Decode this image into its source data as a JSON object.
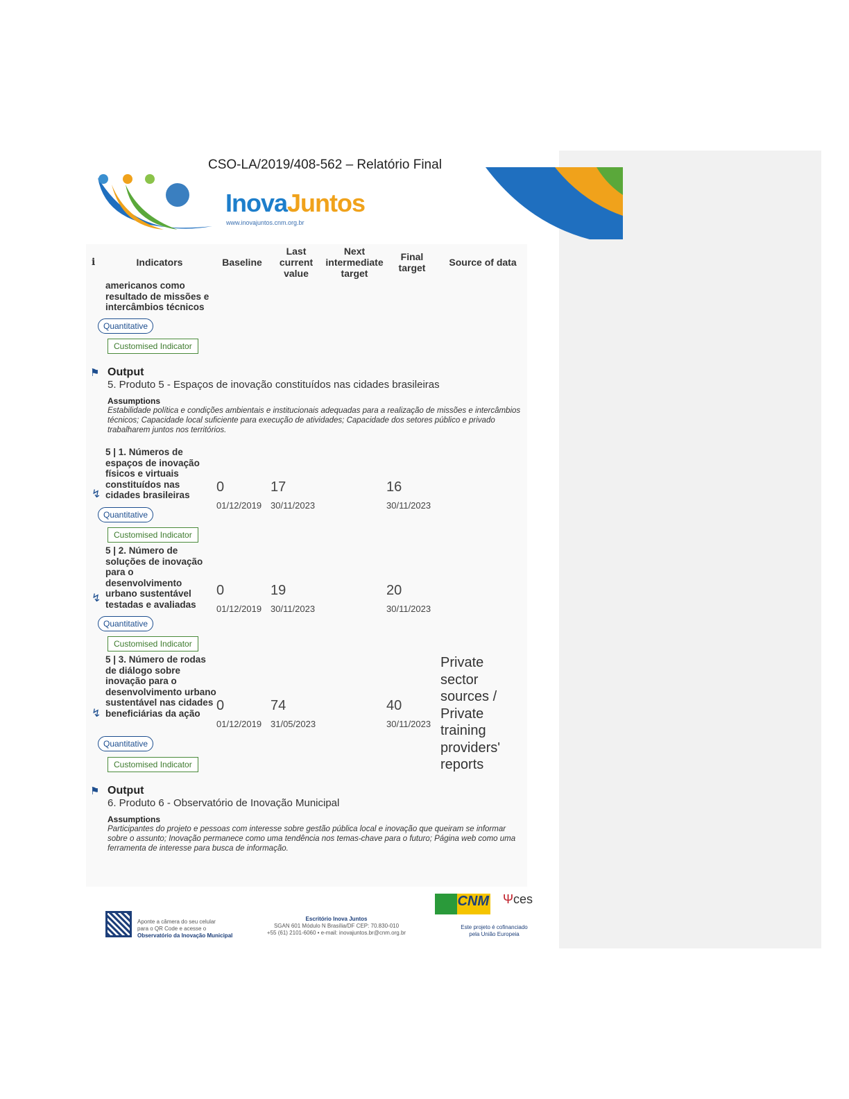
{
  "header": {
    "doc_ref": "CSO-LA/2019/408-562 – Relatório Final",
    "brand_part1": "Inova",
    "brand_part2": "Juntos",
    "brand_url": "www.inovajuntos.cnm.org.br"
  },
  "table_header": {
    "info": "i",
    "indicators": "Indicators",
    "baseline": "Baseline",
    "last_current_value": "Last current value",
    "next_intermediate_target": "Next intermediate target",
    "final_target": "Final target",
    "source_of_data": "Source of data"
  },
  "continued_indicator": {
    "name": "americanos como resultado de missões e intercâmbios técnicos",
    "type": "Quantitative",
    "tag": "Customised Indicator"
  },
  "outputs": [
    {
      "label": "Output",
      "title": "5. Produto 5 - Espaços de inovação constituídos nas cidades brasileiras",
      "assumptions_label": "Assumptions",
      "assumptions": "Estabilidade política e condições ambientais e institucionais adequadas para a realização de missões e intercâmbios técnicos; Capacidade local suficiente para execução de atividades; Capacidade dos setores público e privado trabalharem juntos nos territórios.",
      "indicators": [
        {
          "name": "5 | 1. Números de espaços de inovação físicos e virtuais constituídos nas cidades brasileiras",
          "baseline": "0",
          "baseline_date": "01/12/2019",
          "current": "17",
          "current_date": "30/11/2023",
          "final": "16",
          "final_date": "30/11/2023",
          "source": "",
          "type": "Quantitative",
          "tag": "Customised Indicator"
        },
        {
          "name": "5 | 2. Número de soluções de inovação para o desenvolvimento urbano sustentável testadas e avaliadas",
          "baseline": "0",
          "baseline_date": "01/12/2019",
          "current": "19",
          "current_date": "30/11/2023",
          "final": "20",
          "final_date": "30/11/2023",
          "source": "",
          "type": "Quantitative",
          "tag": "Customised Indicator"
        },
        {
          "name": "5 | 3. Número de rodas de diálogo sobre inovação para o desenvolvimento urbano sustentável nas cidades beneficiárias da ação",
          "baseline": "0",
          "baseline_date": "01/12/2019",
          "current": "74",
          "current_date": "31/05/2023",
          "final": "40",
          "final_date": "30/11/2023",
          "source": "Private sector sources / Private training providers' reports",
          "type": "Quantitative",
          "tag": "Customised Indicator"
        }
      ]
    },
    {
      "label": "Output",
      "title": "6. Produto 6 - Observatório de Inovação Municipal",
      "assumptions_label": "Assumptions",
      "assumptions": "Participantes do projeto e pessoas com interesse sobre gestão pública local e inovação que queiram se informar sobre o assunto; Inovação permanece como uma tendência nos temas-chave para o futuro; Página web como uma ferramenta de interesse para busca de informação."
    }
  ],
  "footer": {
    "qr_line1": "Aponte a câmera do seu celular",
    "qr_line2": "para o QR Code e acesse o",
    "qr_line3": "Observatório da Inovação Municipal",
    "office_title": "Escritório Inova Juntos",
    "office_addr": "SGAN 601 Módulo N Brasília/DF  CEP: 70.830-010",
    "office_contact": "+55 (61) 2101-6060  •  e-mail: inovajuntos.br@cnm.org.br",
    "cnm_logo": "CNM",
    "ces_logo": "ces",
    "cofin_line1": "Este projeto é cofinanciado",
    "cofin_line2": "pela União Europeia"
  },
  "colors": {
    "accent": "#1d4e8f",
    "tag_green": "#3c7a2c",
    "brand_blue": "#1d7ecb",
    "brand_orange": "#f0a21b"
  }
}
